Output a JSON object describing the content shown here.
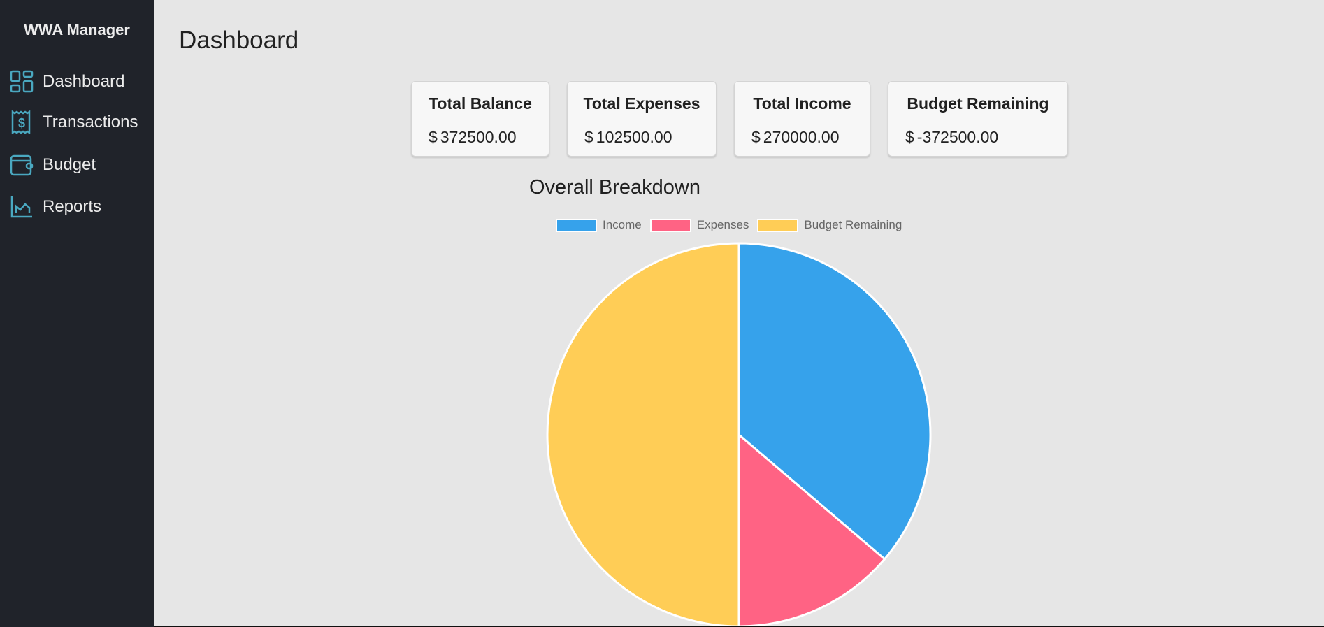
{
  "sidebar": {
    "brand": "WWA Manager",
    "items": [
      {
        "label": "Dashboard",
        "icon": "dashboard-icon"
      },
      {
        "label": "Transactions",
        "icon": "receipt-icon"
      },
      {
        "label": "Budget",
        "icon": "wallet-icon"
      },
      {
        "label": "Reports",
        "icon": "chart-icon"
      }
    ]
  },
  "page": {
    "title": "Dashboard"
  },
  "cards": [
    {
      "title": "Total Balance",
      "currency": "$",
      "value": "372500.00"
    },
    {
      "title": "Total Expenses",
      "currency": "$",
      "value": "102500.00"
    },
    {
      "title": "Total Income",
      "currency": "$",
      "value": "270000.00"
    },
    {
      "title": "Budget Remaining",
      "currency": "$",
      "value": "-372500.00"
    }
  ],
  "colors": {
    "accent": "#4aa8c0",
    "sidebar": "#20232a"
  },
  "chart_data": {
    "type": "pie",
    "title": "Overall Breakdown",
    "categories": [
      "Income",
      "Expenses",
      "Budget Remaining"
    ],
    "values": [
      270000,
      102500,
      -372500
    ],
    "colors": [
      "#36a2eb",
      "#ff6384",
      "#ffcd56"
    ],
    "legend": "top"
  }
}
